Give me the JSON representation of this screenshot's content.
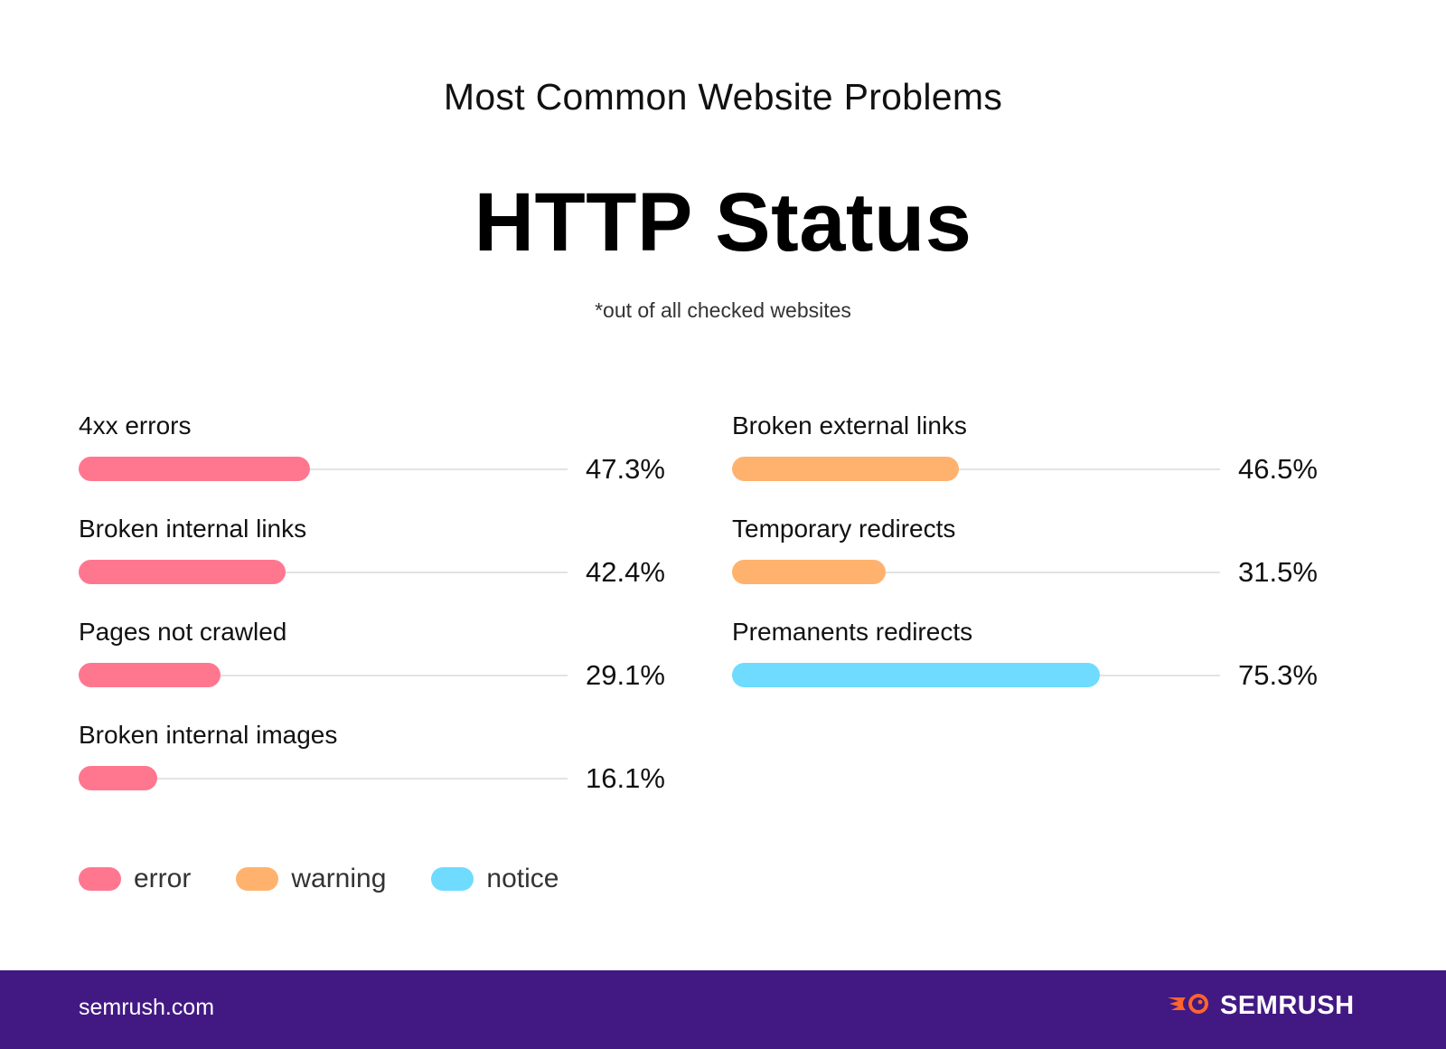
{
  "header": {
    "kicker": "Most Common Website Problems",
    "title": "HTTP Status",
    "subtitle": "*out of all checked websites"
  },
  "colors": {
    "error": "#FF778F",
    "warning": "#FFB26E",
    "notice": "#6FDBFF",
    "track": "#E3E3E3",
    "footer_bg": "#421983",
    "logo_orange": "#FF642D"
  },
  "left_column": [
    {
      "label": "4xx errors",
      "value": 47.3,
      "value_text": "47.3%",
      "category": "error"
    },
    {
      "label": "Broken internal links",
      "value": 42.4,
      "value_text": "42.4%",
      "category": "error"
    },
    {
      "label": "Pages not crawled",
      "value": 29.1,
      "value_text": "29.1%",
      "category": "error"
    },
    {
      "label": "Broken internal images",
      "value": 16.1,
      "value_text": "16.1%",
      "category": "error"
    }
  ],
  "right_column": [
    {
      "label": "Broken external links",
      "value": 46.5,
      "value_text": "46.5%",
      "category": "warning"
    },
    {
      "label": "Temporary redirects",
      "value": 31.5,
      "value_text": "31.5%",
      "category": "warning"
    },
    {
      "label": "Premanents redirects",
      "value": 75.3,
      "value_text": "75.3%",
      "category": "notice"
    }
  ],
  "legend": [
    {
      "label": "error",
      "category": "error"
    },
    {
      "label": "warning",
      "category": "warning"
    },
    {
      "label": "notice",
      "category": "notice"
    }
  ],
  "footer": {
    "site": "semrush.com",
    "logo_text": "SEMRUSH",
    "logo_icon": "semrush-fireball-icon"
  },
  "chart_data": {
    "type": "bar",
    "orientation": "horizontal",
    "title": "HTTP Status",
    "subtitle": "*out of all checked websites",
    "supertitle": "Most Common Website Problems",
    "categories": [
      "4xx errors",
      "Broken internal links",
      "Pages not crawled",
      "Broken internal images",
      "Broken external links",
      "Temporary redirects",
      "Premanents redirects"
    ],
    "values": [
      47.3,
      42.4,
      29.1,
      16.1,
      46.5,
      31.5,
      75.3
    ],
    "severity": [
      "error",
      "error",
      "error",
      "error",
      "warning",
      "warning",
      "notice"
    ],
    "unit": "%",
    "xlim": [
      0,
      100
    ],
    "legend": [
      "error",
      "warning",
      "notice"
    ],
    "legend_position": "bottom-left",
    "grid": false
  }
}
